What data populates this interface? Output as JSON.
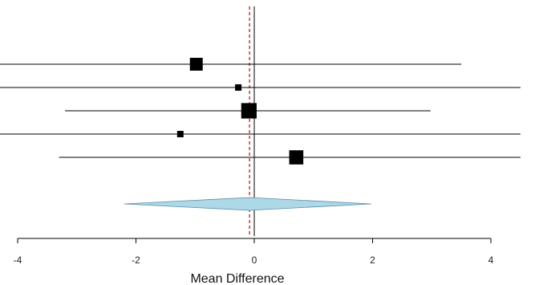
{
  "chart_data": {
    "type": "forest",
    "xlabel": "Mean Difference",
    "xlim": [
      -4,
      4
    ],
    "xticks": [
      -4,
      -2,
      0,
      2,
      4
    ],
    "x_tick_labels": [
      "-4",
      "-2",
      "0",
      "2",
      "4"
    ],
    "reference_line": 0,
    "summary_line": -0.08,
    "studies": [
      {
        "estimate": -0.98,
        "lower": -4.3,
        "upper": 3.5,
        "weight": 1.0
      },
      {
        "estimate": -0.27,
        "lower": -4.3,
        "upper": 4.5,
        "weight": 0.5
      },
      {
        "estimate": -0.09,
        "lower": -3.2,
        "upper": 2.98,
        "weight": 1.2
      },
      {
        "estimate": -1.25,
        "lower": -4.3,
        "upper": 4.5,
        "weight": 0.5
      },
      {
        "estimate": 0.71,
        "lower": -3.3,
        "upper": 4.5,
        "weight": 1.1
      }
    ],
    "summary": {
      "estimate": -0.08,
      "lower": -2.2,
      "upper": 1.98
    },
    "prediction_interval": {
      "lower": -2.07,
      "upper": 1.9
    },
    "colors": {
      "line": "#000000",
      "square": "#000000",
      "diamond_fill": "#add8e6",
      "diamond_stroke": "#5b8fa8",
      "summary_line": "#cc0000"
    }
  }
}
